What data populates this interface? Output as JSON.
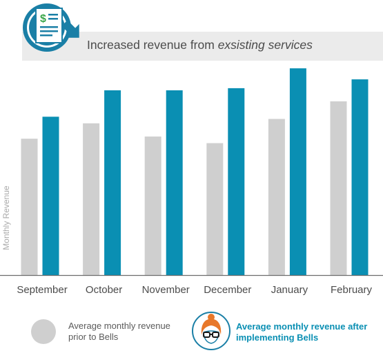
{
  "header": {
    "title_plain": "Increased revenue from ",
    "title_emphasis": "exsisting services",
    "icon": "invoice-dollar-icon"
  },
  "legend": {
    "prior_label": "Average monthly revenue prior to Bells",
    "after_label": "Average monthly revenue after implementing Bells",
    "after_icon": "woman-with-glasses-icon"
  },
  "colors": {
    "prior": "#cfcfcf",
    "after": "#0a8fb3",
    "baseline": "#6c6c6c",
    "axis_label": "#aaaaaa",
    "tick_label": "#4b4b4b"
  },
  "chart_data": {
    "type": "bar",
    "ylabel": "Monthly Revenue",
    "categories": [
      "September",
      "October",
      "November",
      "December",
      "January",
      "February"
    ],
    "series": [
      {
        "values": [
          62,
          69,
          63,
          60,
          71,
          79
        ]
      },
      {
        "values": [
          72,
          84,
          84,
          85,
          94,
          89
        ]
      }
    ],
    "ylim": [
      0,
      100
    ],
    "grid": false,
    "legend_position": "bottom"
  }
}
